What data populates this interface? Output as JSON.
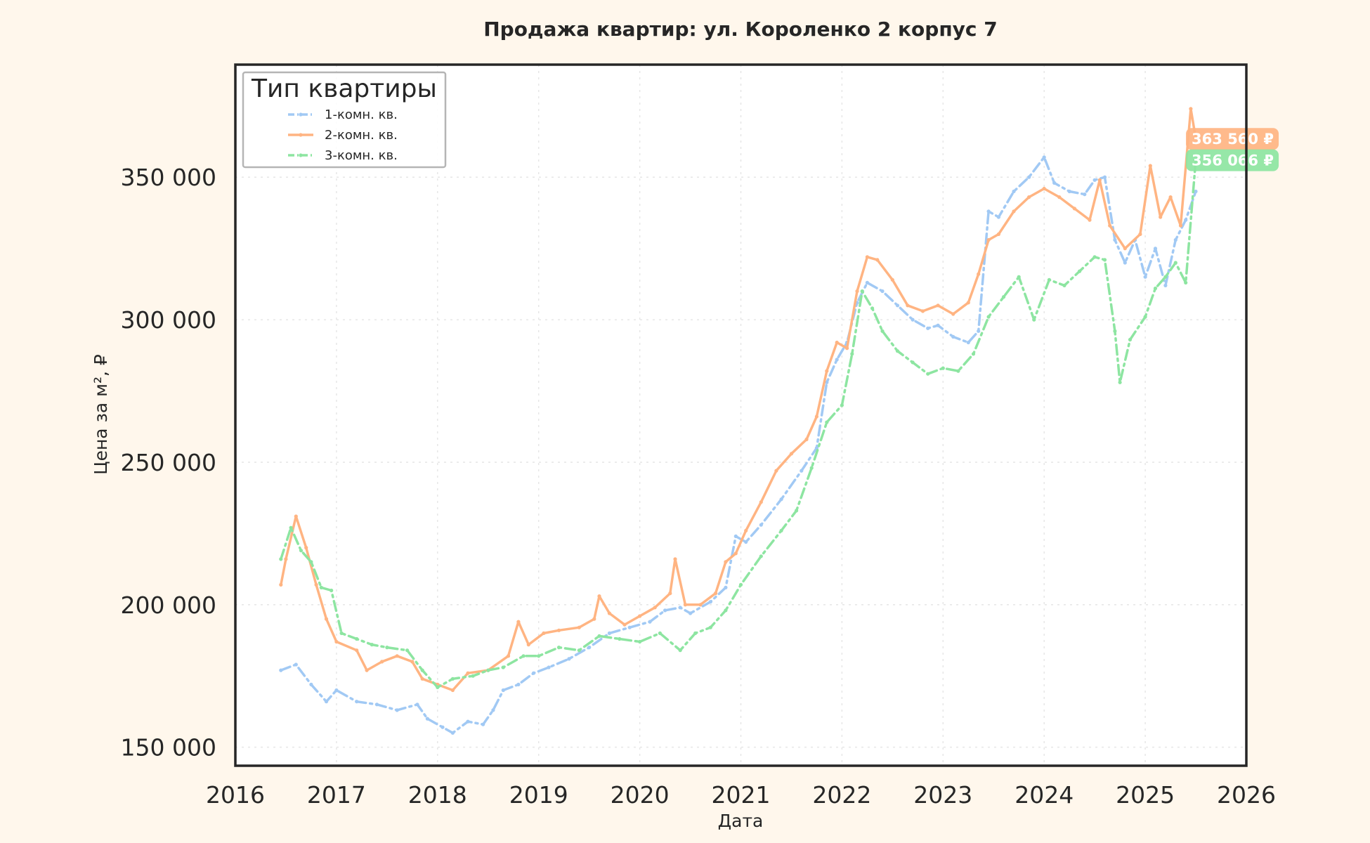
{
  "chart_data": {
    "type": "line",
    "title": "Продажа квартир: ул. Короленко 2 корпус 7",
    "xlabel": "Дата",
    "ylabel": "Цена за м², ₽",
    "xlim": [
      2016,
      2026
    ],
    "ylim": [
      143500,
      389500
    ],
    "x_ticks": [
      "2016",
      "2017",
      "2018",
      "2019",
      "2020",
      "2021",
      "2022",
      "2023",
      "2024",
      "2025",
      "2026"
    ],
    "y_ticks": [
      {
        "value": 150000,
        "label": "150 000"
      },
      {
        "value": 200000,
        "label": "200 000"
      },
      {
        "value": 250000,
        "label": "250 000"
      },
      {
        "value": 300000,
        "label": "300 000"
      },
      {
        "value": 350000,
        "label": "350 000"
      }
    ],
    "grid": true,
    "legend": {
      "title": "Тип квартиры",
      "position": "top-left"
    },
    "series": [
      {
        "name": "1-комн. кв.",
        "color": "#a1c9f4",
        "style": "dash-dot",
        "points": [
          [
            2016.45,
            177000
          ],
          [
            2016.6,
            179000
          ],
          [
            2016.75,
            172000
          ],
          [
            2016.9,
            166000
          ],
          [
            2017.0,
            170000
          ],
          [
            2017.2,
            166000
          ],
          [
            2017.4,
            165000
          ],
          [
            2017.6,
            163000
          ],
          [
            2017.8,
            165000
          ],
          [
            2017.9,
            160000
          ],
          [
            2018.05,
            157000
          ],
          [
            2018.15,
            155000
          ],
          [
            2018.3,
            159000
          ],
          [
            2018.45,
            158000
          ],
          [
            2018.55,
            163000
          ],
          [
            2018.65,
            170000
          ],
          [
            2018.8,
            172000
          ],
          [
            2018.95,
            176000
          ],
          [
            2019.1,
            178000
          ],
          [
            2019.3,
            181000
          ],
          [
            2019.5,
            185000
          ],
          [
            2019.7,
            190000
          ],
          [
            2019.9,
            192000
          ],
          [
            2020.1,
            194000
          ],
          [
            2020.25,
            198000
          ],
          [
            2020.4,
            199000
          ],
          [
            2020.5,
            197000
          ],
          [
            2020.7,
            201000
          ],
          [
            2020.85,
            206000
          ],
          [
            2020.95,
            224000
          ],
          [
            2021.05,
            222000
          ],
          [
            2021.2,
            228000
          ],
          [
            2021.4,
            237000
          ],
          [
            2021.6,
            247000
          ],
          [
            2021.75,
            255000
          ],
          [
            2021.85,
            278000
          ],
          [
            2021.95,
            286000
          ],
          [
            2022.05,
            292000
          ],
          [
            2022.15,
            306000
          ],
          [
            2022.25,
            313000
          ],
          [
            2022.4,
            310000
          ],
          [
            2022.55,
            305000
          ],
          [
            2022.7,
            300000
          ],
          [
            2022.85,
            297000
          ],
          [
            2022.95,
            298000
          ],
          [
            2023.1,
            294000
          ],
          [
            2023.25,
            292000
          ],
          [
            2023.35,
            296000
          ],
          [
            2023.45,
            338000
          ],
          [
            2023.55,
            336000
          ],
          [
            2023.7,
            345000
          ],
          [
            2023.85,
            350000
          ],
          [
            2024.0,
            357000
          ],
          [
            2024.1,
            348000
          ],
          [
            2024.25,
            345000
          ],
          [
            2024.4,
            344000
          ],
          [
            2024.5,
            349000
          ],
          [
            2024.6,
            350000
          ],
          [
            2024.7,
            328000
          ],
          [
            2024.8,
            320000
          ],
          [
            2024.9,
            328000
          ],
          [
            2025.0,
            315000
          ],
          [
            2025.1,
            325000
          ],
          [
            2025.2,
            312000
          ],
          [
            2025.3,
            328000
          ],
          [
            2025.4,
            335000
          ],
          [
            2025.5,
            345000
          ]
        ]
      },
      {
        "name": "2-комн. кв.",
        "color": "#ffb482",
        "style": "solid",
        "end_label": "363 560 ₽",
        "end_value": 363560,
        "points": [
          [
            2016.45,
            207000
          ],
          [
            2016.5,
            216000
          ],
          [
            2016.6,
            231000
          ],
          [
            2016.7,
            220000
          ],
          [
            2016.8,
            207000
          ],
          [
            2016.9,
            195000
          ],
          [
            2017.0,
            187000
          ],
          [
            2017.2,
            184000
          ],
          [
            2017.3,
            177000
          ],
          [
            2017.45,
            180000
          ],
          [
            2017.6,
            182000
          ],
          [
            2017.75,
            180000
          ],
          [
            2017.85,
            174000
          ],
          [
            2018.0,
            172000
          ],
          [
            2018.15,
            170000
          ],
          [
            2018.3,
            176000
          ],
          [
            2018.5,
            177000
          ],
          [
            2018.7,
            182000
          ],
          [
            2018.8,
            194000
          ],
          [
            2018.9,
            186000
          ],
          [
            2019.05,
            190000
          ],
          [
            2019.2,
            191000
          ],
          [
            2019.4,
            192000
          ],
          [
            2019.55,
            195000
          ],
          [
            2019.6,
            203000
          ],
          [
            2019.7,
            197000
          ],
          [
            2019.85,
            193000
          ],
          [
            2020.0,
            196000
          ],
          [
            2020.15,
            199000
          ],
          [
            2020.3,
            204000
          ],
          [
            2020.35,
            216000
          ],
          [
            2020.45,
            200000
          ],
          [
            2020.6,
            200000
          ],
          [
            2020.75,
            204000
          ],
          [
            2020.85,
            215000
          ],
          [
            2020.95,
            218000
          ],
          [
            2021.05,
            226000
          ],
          [
            2021.2,
            236000
          ],
          [
            2021.35,
            247000
          ],
          [
            2021.5,
            253000
          ],
          [
            2021.65,
            258000
          ],
          [
            2021.75,
            266000
          ],
          [
            2021.85,
            282000
          ],
          [
            2021.95,
            292000
          ],
          [
            2022.05,
            290000
          ],
          [
            2022.15,
            310000
          ],
          [
            2022.25,
            322000
          ],
          [
            2022.35,
            321000
          ],
          [
            2022.5,
            314000
          ],
          [
            2022.65,
            305000
          ],
          [
            2022.8,
            303000
          ],
          [
            2022.95,
            305000
          ],
          [
            2023.1,
            302000
          ],
          [
            2023.25,
            306000
          ],
          [
            2023.35,
            316000
          ],
          [
            2023.45,
            328000
          ],
          [
            2023.55,
            330000
          ],
          [
            2023.7,
            338000
          ],
          [
            2023.85,
            343000
          ],
          [
            2024.0,
            346000
          ],
          [
            2024.15,
            343000
          ],
          [
            2024.3,
            339000
          ],
          [
            2024.45,
            335000
          ],
          [
            2024.55,
            349000
          ],
          [
            2024.65,
            333000
          ],
          [
            2024.8,
            325000
          ],
          [
            2024.95,
            330000
          ],
          [
            2025.05,
            354000
          ],
          [
            2025.15,
            336000
          ],
          [
            2025.25,
            343000
          ],
          [
            2025.35,
            333000
          ],
          [
            2025.45,
            374000
          ],
          [
            2025.5,
            363560
          ]
        ]
      },
      {
        "name": "3-комн. кв.",
        "color": "#8de5a1",
        "style": "dash-dot",
        "end_label": "356 066 ₽",
        "end_value": 356066,
        "points": [
          [
            2016.45,
            216000
          ],
          [
            2016.55,
            227000
          ],
          [
            2016.65,
            219000
          ],
          [
            2016.75,
            215000
          ],
          [
            2016.85,
            206000
          ],
          [
            2016.95,
            205000
          ],
          [
            2017.05,
            190000
          ],
          [
            2017.2,
            188000
          ],
          [
            2017.35,
            186000
          ],
          [
            2017.5,
            185000
          ],
          [
            2017.7,
            184000
          ],
          [
            2017.85,
            177000
          ],
          [
            2018.0,
            171000
          ],
          [
            2018.15,
            174000
          ],
          [
            2018.35,
            175000
          ],
          [
            2018.5,
            177000
          ],
          [
            2018.65,
            178000
          ],
          [
            2018.85,
            182000
          ],
          [
            2019.0,
            182000
          ],
          [
            2019.2,
            185000
          ],
          [
            2019.4,
            184000
          ],
          [
            2019.6,
            189000
          ],
          [
            2019.8,
            188000
          ],
          [
            2020.0,
            187000
          ],
          [
            2020.2,
            190000
          ],
          [
            2020.4,
            184000
          ],
          [
            2020.55,
            190000
          ],
          [
            2020.7,
            192000
          ],
          [
            2020.85,
            198000
          ],
          [
            2021.0,
            207000
          ],
          [
            2021.2,
            217000
          ],
          [
            2021.4,
            226000
          ],
          [
            2021.55,
            233000
          ],
          [
            2021.7,
            248000
          ],
          [
            2021.85,
            264000
          ],
          [
            2022.0,
            270000
          ],
          [
            2022.1,
            288000
          ],
          [
            2022.2,
            310000
          ],
          [
            2022.3,
            304000
          ],
          [
            2022.4,
            296000
          ],
          [
            2022.55,
            289000
          ],
          [
            2022.7,
            285000
          ],
          [
            2022.85,
            281000
          ],
          [
            2023.0,
            283000
          ],
          [
            2023.15,
            282000
          ],
          [
            2023.3,
            288000
          ],
          [
            2023.45,
            301000
          ],
          [
            2023.6,
            308000
          ],
          [
            2023.75,
            315000
          ],
          [
            2023.9,
            300000
          ],
          [
            2024.05,
            314000
          ],
          [
            2024.2,
            312000
          ],
          [
            2024.35,
            317000
          ],
          [
            2024.5,
            322000
          ],
          [
            2024.6,
            321000
          ],
          [
            2024.7,
            296000
          ],
          [
            2024.75,
            278000
          ],
          [
            2024.85,
            293000
          ],
          [
            2025.0,
            301000
          ],
          [
            2025.1,
            311000
          ],
          [
            2025.2,
            315000
          ],
          [
            2025.3,
            320000
          ],
          [
            2025.4,
            313000
          ],
          [
            2025.5,
            356066
          ]
        ]
      }
    ]
  }
}
